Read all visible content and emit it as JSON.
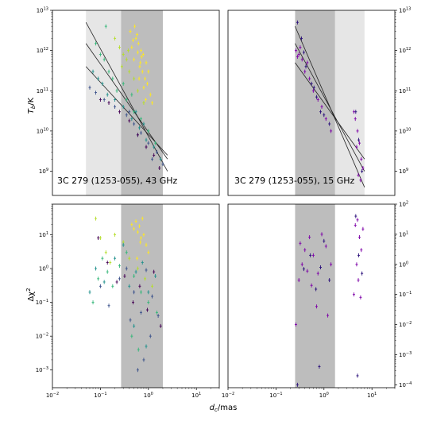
{
  "chart_data": [
    {
      "type": "scatter",
      "panel": "top-left",
      "annotation": "3C 279 (1253-055), 43 GHz",
      "ylabel": "T_b/K",
      "xscale": "log",
      "yscale": "log",
      "xlim": [
        0.01,
        30
      ],
      "ylim": [
        250000000.0,
        10000000000000.0
      ],
      "x_tick_labels": [
        "10^-2",
        "10^-1",
        "10^0",
        "10^1"
      ],
      "y_tick_labels": [
        "10^9",
        "10^10",
        "10^11",
        "10^12",
        "10^13"
      ],
      "shaded_band": [
        0.27,
        2.0
      ],
      "light_band": [
        0.05,
        0.27
      ],
      "fit_lines": [
        {
          "x": [
            0.05,
            2.5
          ],
          "y": [
            5000000000000.0,
            1000000000.0
          ]
        },
        {
          "x": [
            0.05,
            2.5
          ],
          "y": [
            1500000000000.0,
            2000000000.0
          ]
        },
        {
          "x": [
            0.05,
            2.5
          ],
          "y": [
            400000000000.0,
            2500000000.0
          ]
        }
      ],
      "series": [
        {
          "color": "#fde725",
          "x": [
            0.42,
            0.55,
            0.62,
            0.7,
            0.78,
            0.9,
            1.0,
            0.5,
            0.66,
            0.58,
            0.8,
            1.1,
            0.45,
            0.72,
            0.85,
            0.6,
            0.95,
            0.52,
            0.68,
            0.75,
            0.88,
            0.48,
            1.2,
            0.64
          ],
          "y": [
            3000000000000.0,
            2000000000000.0,
            1500000000000.0,
            1000000000000.0,
            800000000000.0,
            500000000000.0,
            300000000000.0,
            600000000000.0,
            400000000000.0,
            2500000000000.0,
            120000000000.0,
            80000000000.0,
            1200000000000.0,
            700000000000.0,
            200000000000.0,
            900000000000.0,
            150000000000.0,
            4000000000000.0,
            500000000000.0,
            300000000000.0,
            60000000000.0,
            1800000000000.0,
            50000000000.0,
            200000000000.0
          ]
        },
        {
          "color": "#b5de2b",
          "x": [
            0.2,
            0.25,
            0.3,
            0.35,
            0.4,
            0.5,
            0.6,
            0.8,
            0.38,
            0.28
          ],
          "y": [
            2000000000000.0,
            1200000000000.0,
            800000000000.0,
            600000000000.0,
            300000000000.0,
            200000000000.0,
            100000000000.0,
            50000000000.0,
            1000000000000.0,
            400000000000.0
          ]
        },
        {
          "color": "#35b779",
          "x": [
            0.08,
            0.1,
            0.12,
            0.15,
            0.18,
            0.22,
            0.35,
            0.5,
            0.7,
            1.0,
            1.4,
            0.13,
            0.3,
            0.45
          ],
          "y": [
            1500000000000.0,
            800000000000.0,
            600000000000.0,
            300000000000.0,
            200000000000.0,
            100000000000.0,
            60000000000.0,
            30000000000.0,
            20000000000.0,
            10000000000.0,
            5000000000.0,
            4000000000000.0,
            150000000000.0,
            80000000000.0
          ]
        },
        {
          "color": "#21918c",
          "x": [
            0.07,
            0.09,
            0.11,
            0.14,
            0.2,
            0.3,
            0.45,
            0.65,
            0.9,
            1.3,
            1.8,
            0.55,
            0.8
          ],
          "y": [
            300000000000.0,
            200000000000.0,
            150000000000.0,
            80000000000.0,
            60000000000.0,
            40000000000.0,
            20000000000.0,
            12000000000.0,
            6000000000.0,
            4000000000.0,
            2000000000.0,
            30000000000.0,
            15000000000.0
          ]
        },
        {
          "color": "#3b528b",
          "x": [
            0.06,
            0.08,
            0.12,
            0.2,
            0.35,
            0.5,
            0.7,
            1.0,
            1.5,
            2.0,
            0.4,
            0.6,
            0.9,
            1.2
          ],
          "y": [
            120000000000.0,
            90000000000.0,
            60000000000.0,
            40000000000.0,
            25000000000.0,
            15000000000.0,
            9000000000.0,
            5000000000.0,
            3000000000.0,
            1500000000.0,
            30000000000.0,
            8000000000.0,
            4000000000.0,
            2000000000.0
          ]
        },
        {
          "color": "#440154",
          "x": [
            0.1,
            0.15,
            0.25,
            0.4,
            0.6,
            0.9,
            1.3,
            1.7
          ],
          "y": [
            60000000000.0,
            50000000000.0,
            30000000000.0,
            18000000000.0,
            8000000000.0,
            4000000000.0,
            2500000000.0,
            1200000000.0
          ]
        }
      ]
    },
    {
      "type": "scatter",
      "panel": "top-right",
      "annotation": "3C 279 (1253-055), 15 GHz",
      "xscale": "log",
      "yscale": "log",
      "xlim": [
        0.01,
        30
      ],
      "ylim": [
        250000000.0,
        10000000000000.0
      ],
      "y_tick_labels": [
        "10^9",
        "10^10",
        "10^11",
        "10^12",
        "10^13"
      ],
      "shaded_band": [
        0.25,
        1.7
      ],
      "light_band": [
        1.7,
        7.0
      ],
      "fit_lines": [
        {
          "x": [
            0.25,
            7.0
          ],
          "y": [
            4000000000000.0,
            400000000.0
          ]
        },
        {
          "x": [
            0.25,
            7.0
          ],
          "y": [
            1500000000000.0,
            1000000000.0
          ]
        },
        {
          "x": [
            0.25,
            7.0
          ],
          "y": [
            500000000000.0,
            2000000000.0
          ]
        }
      ],
      "series": [
        {
          "color": "#7e03a8",
          "x": [
            0.26,
            0.3,
            0.35,
            0.4,
            0.5,
            0.6,
            0.75,
            0.9,
            1.1,
            1.4,
            4.5,
            5.0,
            5.5,
            6.0,
            4.8,
            5.2,
            5.8,
            6.5,
            4.2,
            0.32,
            0.45,
            0.28
          ],
          "y": [
            1000000000000.0,
            800000000000.0,
            600000000000.0,
            300000000000.0,
            200000000000.0,
            100000000000.0,
            60000000000.0,
            40000000000.0,
            20000000000.0,
            10000000000.0,
            20000000000.0,
            10000000000.0,
            5000000000.0,
            2000000000.0,
            4000000000.0,
            800000000.0,
            600000000.0,
            1200000000.0,
            30000000000.0,
            1200000000000.0,
            500000000000.0,
            700000000000.0
          ]
        },
        {
          "color": "#2a0f7a",
          "x": [
            0.28,
            0.34,
            0.42,
            0.55,
            0.7,
            0.85,
            1.0,
            1.3,
            4.6,
            5.3,
            6.2,
            0.38,
            0.62
          ],
          "y": [
            5000000000000.0,
            2000000000000.0,
            400000000000.0,
            150000000000.0,
            70000000000.0,
            30000000000.0,
            25000000000.0,
            15000000000.0,
            30000000000.0,
            6000000000.0,
            1000000000.0,
            900000000000.0,
            120000000000.0
          ]
        }
      ]
    },
    {
      "type": "scatter",
      "panel": "bottom-left",
      "ylabel": "Δχ²",
      "xlabel": "d_c/mas",
      "xscale": "log",
      "yscale": "log",
      "xlim": [
        0.01,
        30
      ],
      "ylim": [
        0.0003,
        80
      ],
      "x_tick_labels": [
        "10^-2",
        "10^-1",
        "10^0",
        "10^1"
      ],
      "y_tick_labels": [
        "10^-3",
        "10^-2",
        "10^-1",
        "10^0",
        "10^1"
      ],
      "shaded_band": [
        0.27,
        2.0
      ],
      "series": [
        {
          "color": "#fde725",
          "x": [
            0.45,
            0.5,
            0.55,
            0.6,
            0.65,
            0.7,
            0.75,
            0.8,
            0.9,
            1.0,
            0.58,
            0.68
          ],
          "y": [
            20,
            15,
            25,
            12,
            18,
            8,
            30,
            10,
            5,
            3,
            2,
            6
          ]
        },
        {
          "color": "#b5de2b",
          "x": [
            0.08,
            0.1,
            0.13,
            0.16,
            0.2,
            0.3,
            0.4,
            0.6,
            0.85,
            1.2
          ],
          "y": [
            30,
            8,
            3,
            1.5,
            10,
            6,
            2,
            1,
            0.5,
            0.3
          ]
        },
        {
          "color": "#35b779",
          "x": [
            0.07,
            0.09,
            0.11,
            0.14,
            0.18,
            0.25,
            0.35,
            0.5,
            0.7,
            1.0,
            1.5,
            0.45,
            0.62
          ],
          "y": [
            0.1,
            0.5,
            2,
            0.8,
            0.3,
            1.2,
            3,
            0.6,
            0.2,
            0.1,
            0.05,
            0.01,
            0.004
          ]
        },
        {
          "color": "#21918c",
          "x": [
            0.06,
            0.08,
            0.12,
            0.2,
            0.3,
            0.4,
            0.55,
            0.75,
            1.0,
            1.4,
            0.5,
            0.9
          ],
          "y": [
            0.2,
            1,
            0.4,
            2,
            5,
            0.3,
            0.8,
            1.5,
            0.2,
            0.6,
            0.02,
            0.005
          ]
        },
        {
          "color": "#3b528b",
          "x": [
            0.1,
            0.15,
            0.25,
            0.35,
            0.5,
            0.7,
            0.9,
            1.2,
            1.6,
            0.6,
            0.8,
            1.1,
            0.42
          ],
          "y": [
            0.3,
            0.08,
            0.5,
            1,
            0.2,
            0.05,
            0.9,
            0.15,
            0.04,
            0.001,
            0.002,
            0.01,
            0.03
          ]
        },
        {
          "color": "#440154",
          "x": [
            0.09,
            0.14,
            0.22,
            0.32,
            0.48,
            0.66,
            0.95,
            1.3,
            1.8
          ],
          "y": [
            8,
            1.5,
            0.4,
            0.6,
            0.1,
            0.3,
            0.06,
            0.8,
            0.02
          ]
        }
      ]
    },
    {
      "type": "scatter",
      "panel": "bottom-right",
      "xscale": "log",
      "yscale": "log",
      "xlim": [
        0.01,
        30
      ],
      "ylim": [
        8e-05,
        100
      ],
      "x_tick_labels": [
        "10^-2",
        "10^-1",
        "10^0",
        "10^1"
      ],
      "y_tick_labels": [
        "10^-4",
        "10^-3",
        "10^-2",
        "10^-1",
        "10^0",
        "10^1",
        "10^2"
      ],
      "shaded_band": [
        0.25,
        1.7
      ],
      "series": [
        {
          "color": "#7e03a8",
          "x": [
            0.26,
            0.3,
            0.35,
            0.4,
            0.5,
            0.6,
            0.75,
            0.9,
            1.1,
            1.4,
            4.5,
            5.0,
            5.5,
            6.0,
            4.8,
            5.2,
            5.8,
            6.5,
            4.2,
            0.32,
            0.45,
            0.55,
            0.7,
            1.2
          ],
          "y": [
            0.01,
            0.3,
            1,
            3,
            8,
            2,
            0.5,
            10,
            4,
            1,
            20,
            30,
            8,
            3,
            1,
            0.3,
            0.08,
            15,
            0.1,
            5,
            0.6,
            0.2,
            0.04,
            0.02
          ]
        },
        {
          "color": "#2a0f7a",
          "x": [
            0.28,
            0.38,
            0.52,
            0.68,
            0.85,
            1.0,
            1.3,
            4.6,
            5.3,
            6.2,
            0.8,
            5.0
          ],
          "y": [
            0.0001,
            0.7,
            2,
            0.15,
            0.8,
            6,
            0.3,
            40,
            2,
            0.5,
            0.0004,
            0.0002
          ]
        }
      ]
    }
  ],
  "figure": {
    "xlabel": "d_c/mas",
    "xlabel_main": "d",
    "xlabel_sub": "c",
    "xlabel_rest": "/mas",
    "ylabel_top_main": "T",
    "ylabel_top_sub": "b",
    "ylabel_top_rest": "/K",
    "ylabel_bottom_main": "Δχ",
    "ylabel_bottom_sup": "2",
    "panel_label_43": "3C 279 (1253-055), 43 GHz",
    "panel_label_15": "3C 279 (1253-055), 15 GHz"
  }
}
